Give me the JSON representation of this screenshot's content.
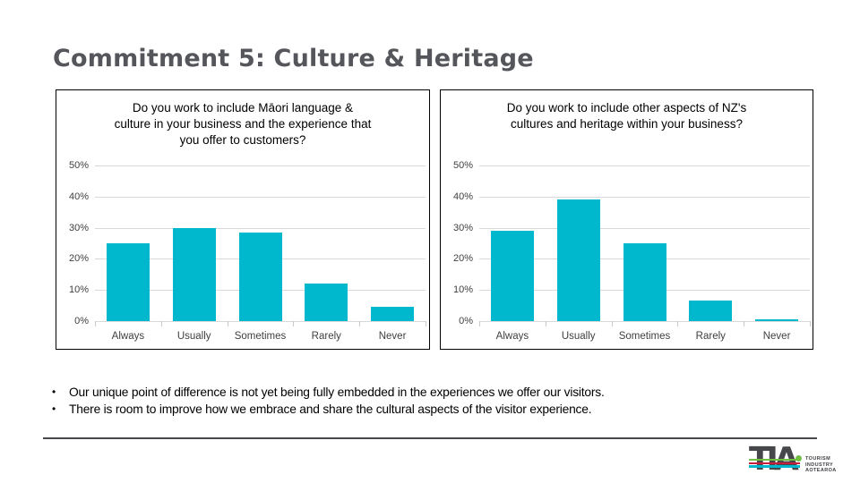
{
  "slide": {
    "title": "Commitment 5: Culture & Heritage"
  },
  "chart_data": [
    {
      "type": "bar",
      "title": "Do you work to include Māori language & culture in your business and the experience that you offer to customers?",
      "categories": [
        "Always",
        "Usually",
        "Sometimes",
        "Rarely",
        "Never"
      ],
      "values": [
        25,
        30,
        28.5,
        12,
        4.5
      ],
      "value_unit": "percent",
      "xlabel": "",
      "ylabel": "",
      "ylim": [
        0,
        50
      ],
      "ytick_step": 10,
      "grid": true,
      "legend": false,
      "bar_color": "#00B8CE"
    },
    {
      "type": "bar",
      "title": "Do you work to include other aspects of NZ's cultures and heritage within your business?",
      "categories": [
        "Always",
        "Usually",
        "Sometimes",
        "Rarely",
        "Never"
      ],
      "values": [
        29,
        39,
        25,
        6.5,
        0.7
      ],
      "value_unit": "percent",
      "xlabel": "",
      "ylabel": "",
      "ylim": [
        0,
        50
      ],
      "ytick_step": 10,
      "grid": true,
      "legend": false,
      "bar_color": "#00B8CE"
    }
  ],
  "bullets": [
    "Our unique point of difference is not yet being fully embedded in the experiences we offer our visitors.",
    "There is room to improve how we embrace and share the cultural aspects of the visitor experience."
  ],
  "logo": {
    "letters": "TIA",
    "text_lines": [
      "TOURISM",
      "INDUSTRY",
      "AOTEAROA"
    ],
    "stripe_colors": {
      "green": "#72BF44",
      "red": "#C4203B",
      "cyan": "#00B8CE"
    }
  },
  "colors": {
    "bar": "#00B8CE",
    "gridline": "#D9D9D9",
    "slide_title": "#54565B",
    "divider": "#47484C"
  }
}
